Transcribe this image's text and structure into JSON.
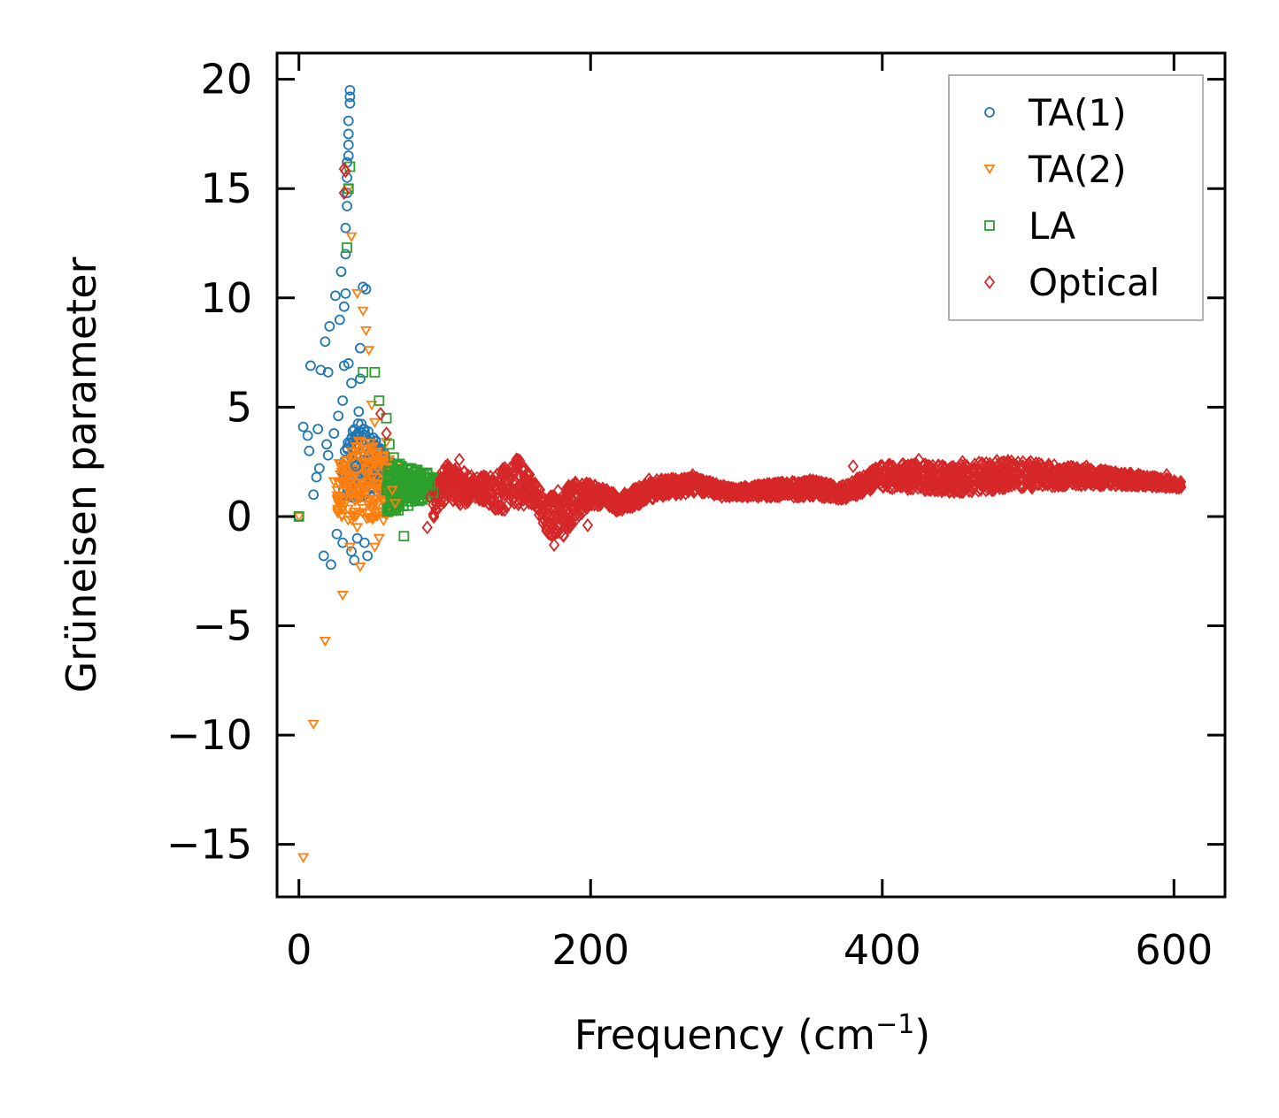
{
  "chart_data": {
    "type": "scatter",
    "title": "",
    "xlabel": "Frequency (cm",
    "xlabel_sup": "−1",
    "xlabel_tail": ")",
    "ylabel": "Grüneisen parameter",
    "xlim": [
      -15,
      635
    ],
    "ylim": [
      -17.4,
      21.2
    ],
    "xticks": [
      0,
      200,
      400,
      600
    ],
    "xtick_labels": [
      "0",
      "200",
      "400",
      "600"
    ],
    "yticks": [
      20,
      15,
      10,
      5,
      0,
      -5,
      -10,
      -15
    ],
    "ytick_labels": [
      "20",
      "15",
      "10",
      "5",
      "0",
      "−5",
      "−10",
      "−15"
    ],
    "legend_position": "top-right",
    "series": [
      {
        "name": "TA(1)",
        "marker": "circle",
        "color": "#1f77b4",
        "points": [
          [
            0,
            0
          ],
          [
            3,
            4.1
          ],
          [
            6,
            3.7
          ],
          [
            7,
            3.0
          ],
          [
            8,
            6.9
          ],
          [
            10,
            1.0
          ],
          [
            12,
            1.8
          ],
          [
            13,
            4.0
          ],
          [
            14,
            2.2
          ],
          [
            15,
            6.7
          ],
          [
            17,
            -1.8
          ],
          [
            18,
            8.0
          ],
          [
            19,
            3.3
          ],
          [
            20,
            2.8
          ],
          [
            20,
            6.6
          ],
          [
            21,
            8.7
          ],
          [
            22,
            -2.2
          ],
          [
            24,
            3.8
          ],
          [
            25,
            10.1
          ],
          [
            26,
            -0.8
          ],
          [
            27,
            4.6
          ],
          [
            28,
            9.0
          ],
          [
            29,
            11.2
          ],
          [
            30,
            5.3
          ],
          [
            30,
            -1.2
          ],
          [
            31,
            6.9
          ],
          [
            32,
            12.0
          ],
          [
            32,
            13.2
          ],
          [
            33,
            14.2
          ],
          [
            33,
            16.2
          ],
          [
            34,
            17.5
          ],
          [
            34,
            18.1
          ],
          [
            35,
            18.9
          ],
          [
            35,
            19.2
          ],
          [
            35,
            19.5
          ],
          [
            34,
            16.5
          ],
          [
            34,
            17.0
          ],
          [
            33,
            14.8
          ],
          [
            33,
            15.5
          ],
          [
            31,
            9.6
          ],
          [
            32,
            10.2
          ],
          [
            34,
            7.0
          ],
          [
            36,
            6.1
          ],
          [
            36,
            -1.6
          ],
          [
            38,
            -2.0
          ],
          [
            40,
            -1.0
          ],
          [
            42,
            6.3
          ],
          [
            44,
            10.5
          ],
          [
            45,
            -1.2
          ],
          [
            46,
            10.4
          ],
          [
            47,
            -1.8
          ],
          [
            42,
            7.7
          ],
          [
            41,
            4.8
          ],
          [
            39,
            2.3
          ],
          [
            37,
            3.9
          ]
        ]
      },
      {
        "name": "TA(2)",
        "marker": "triangle-down",
        "color": "#ff7f0e",
        "points": [
          [
            0,
            0
          ],
          [
            3,
            -15.6
          ],
          [
            10,
            -9.5
          ],
          [
            18,
            -5.7
          ],
          [
            30,
            -3.6
          ],
          [
            34,
            15.0
          ],
          [
            36,
            12.8
          ],
          [
            40,
            10.2
          ],
          [
            42,
            -2.3
          ],
          [
            44,
            9.4
          ],
          [
            46,
            8.5
          ],
          [
            48,
            7.6
          ],
          [
            50,
            5.1
          ],
          [
            52,
            4.3
          ],
          [
            36,
            1.1
          ],
          [
            38,
            0.2
          ],
          [
            40,
            -0.5
          ],
          [
            44,
            2.5
          ],
          [
            46,
            1.9
          ],
          [
            52,
            -1.4
          ],
          [
            55,
            -1.0
          ],
          [
            58,
            -0.2
          ],
          [
            60,
            3.4
          ],
          [
            62,
            2.6
          ],
          [
            64,
            1.2
          ],
          [
            66,
            0.6
          ],
          [
            35,
            -1.4
          ],
          [
            24,
            1.6
          ]
        ]
      },
      {
        "name": "LA",
        "marker": "square",
        "color": "#2ca02c",
        "points": [
          [
            0,
            0
          ],
          [
            33,
            12.3
          ],
          [
            34,
            15.0
          ],
          [
            35,
            16.0
          ],
          [
            44,
            6.6
          ],
          [
            52,
            6.6
          ],
          [
            55,
            5.3
          ],
          [
            60,
            4.5
          ],
          [
            62,
            3.3
          ],
          [
            65,
            2.7
          ],
          [
            68,
            2.3
          ],
          [
            70,
            1.9
          ],
          [
            72,
            -0.9
          ],
          [
            73,
            1.2
          ],
          [
            75,
            0.5
          ],
          [
            77,
            2.2
          ],
          [
            79,
            1.7
          ],
          [
            81,
            1.3
          ],
          [
            83,
            1.0
          ],
          [
            85,
            1.6
          ],
          [
            88,
            2.0
          ],
          [
            90,
            1.4
          ],
          [
            92,
            1.1
          ]
        ]
      },
      {
        "name": "Optical",
        "marker": "diamond",
        "color": "#d62728",
        "points": [
          [
            31,
            15.9
          ],
          [
            32,
            15.8
          ],
          [
            31,
            14.8
          ],
          [
            56,
            4.7
          ],
          [
            60,
            3.8
          ],
          [
            88,
            -0.5
          ],
          [
            90,
            0.9
          ],
          [
            100,
            1.6
          ],
          [
            110,
            2.6
          ],
          [
            120,
            1.7
          ],
          [
            130,
            0.6
          ],
          [
            140,
            2.0
          ],
          [
            150,
            2.6
          ],
          [
            160,
            1.2
          ],
          [
            170,
            -0.6
          ],
          [
            175,
            -1.3
          ],
          [
            180,
            0.7
          ],
          [
            190,
            1.5
          ],
          [
            198,
            -0.4
          ],
          [
            205,
            0.8
          ],
          [
            220,
            0.5
          ],
          [
            240,
            1.7
          ],
          [
            255,
            1.6
          ],
          [
            270,
            1.9
          ],
          [
            290,
            0.9
          ],
          [
            310,
            1.3
          ],
          [
            330,
            1.5
          ],
          [
            350,
            1.5
          ],
          [
            370,
            0.8
          ],
          [
            380,
            2.3
          ],
          [
            395,
            2.0
          ],
          [
            410,
            1.9
          ],
          [
            425,
            2.6
          ],
          [
            440,
            1.7
          ],
          [
            455,
            2.5
          ],
          [
            470,
            1.6
          ],
          [
            485,
            2.4
          ],
          [
            500,
            2.2
          ],
          [
            520,
            1.8
          ],
          [
            540,
            2.3
          ],
          [
            560,
            2.0
          ],
          [
            580,
            1.7
          ],
          [
            595,
            1.9
          ],
          [
            604,
            1.4
          ]
        ]
      }
    ],
    "dense_clusters": [
      {
        "series": "TA(1)",
        "x_range": [
          30,
          66
        ],
        "y_min": [
          0.5,
          0.8,
          1.0,
          1.2,
          1.3
        ],
        "y_max": [
          2.7,
          4.5,
          4.0,
          3.0,
          2.4
        ]
      },
      {
        "series": "TA(2)",
        "x_range": [
          26,
          72
        ],
        "y_min": [
          0.0,
          -0.3,
          -0.2,
          0.1,
          0.3
        ],
        "y_max": [
          2.5,
          3.6,
          3.4,
          2.8,
          2.0
        ]
      },
      {
        "series": "LA",
        "x_range": [
          60,
          96
        ],
        "y_min": [
          0.1,
          0.3,
          0.6,
          0.8,
          0.9
        ],
        "y_max": [
          2.2,
          2.5,
          2.3,
          2.0,
          1.8
        ]
      },
      {
        "series": "Optical",
        "x_range": [
          92,
          220
        ],
        "y_min": [
          -0.1,
          0.9,
          0.5,
          0.8,
          0.4,
          0.2,
          0.5,
          0.6,
          -0.8,
          -1.0,
          -0.1,
          0.5,
          0.5,
          0.2
        ],
        "y_max": [
          1.3,
          2.5,
          2.1,
          1.8,
          1.9,
          2.3,
          2.7,
          1.6,
          0.9,
          1.3,
          1.6,
          1.5,
          1.3,
          0.9
        ]
      },
      {
        "series": "Optical",
        "x_range": [
          220,
          605
        ],
        "y_min": [
          0.2,
          0.9,
          1.1,
          0.9,
          0.9,
          0.9,
          0.8,
          1.3,
          1.2,
          1.1,
          1.2,
          1.3,
          1.4,
          1.4,
          1.4,
          1.3
        ],
        "y_max": [
          1.0,
          1.7,
          1.8,
          1.3,
          1.5,
          1.7,
          1.4,
          2.4,
          2.4,
          2.3,
          2.6,
          2.5,
          2.3,
          2.1,
          1.9,
          1.6
        ]
      }
    ]
  }
}
